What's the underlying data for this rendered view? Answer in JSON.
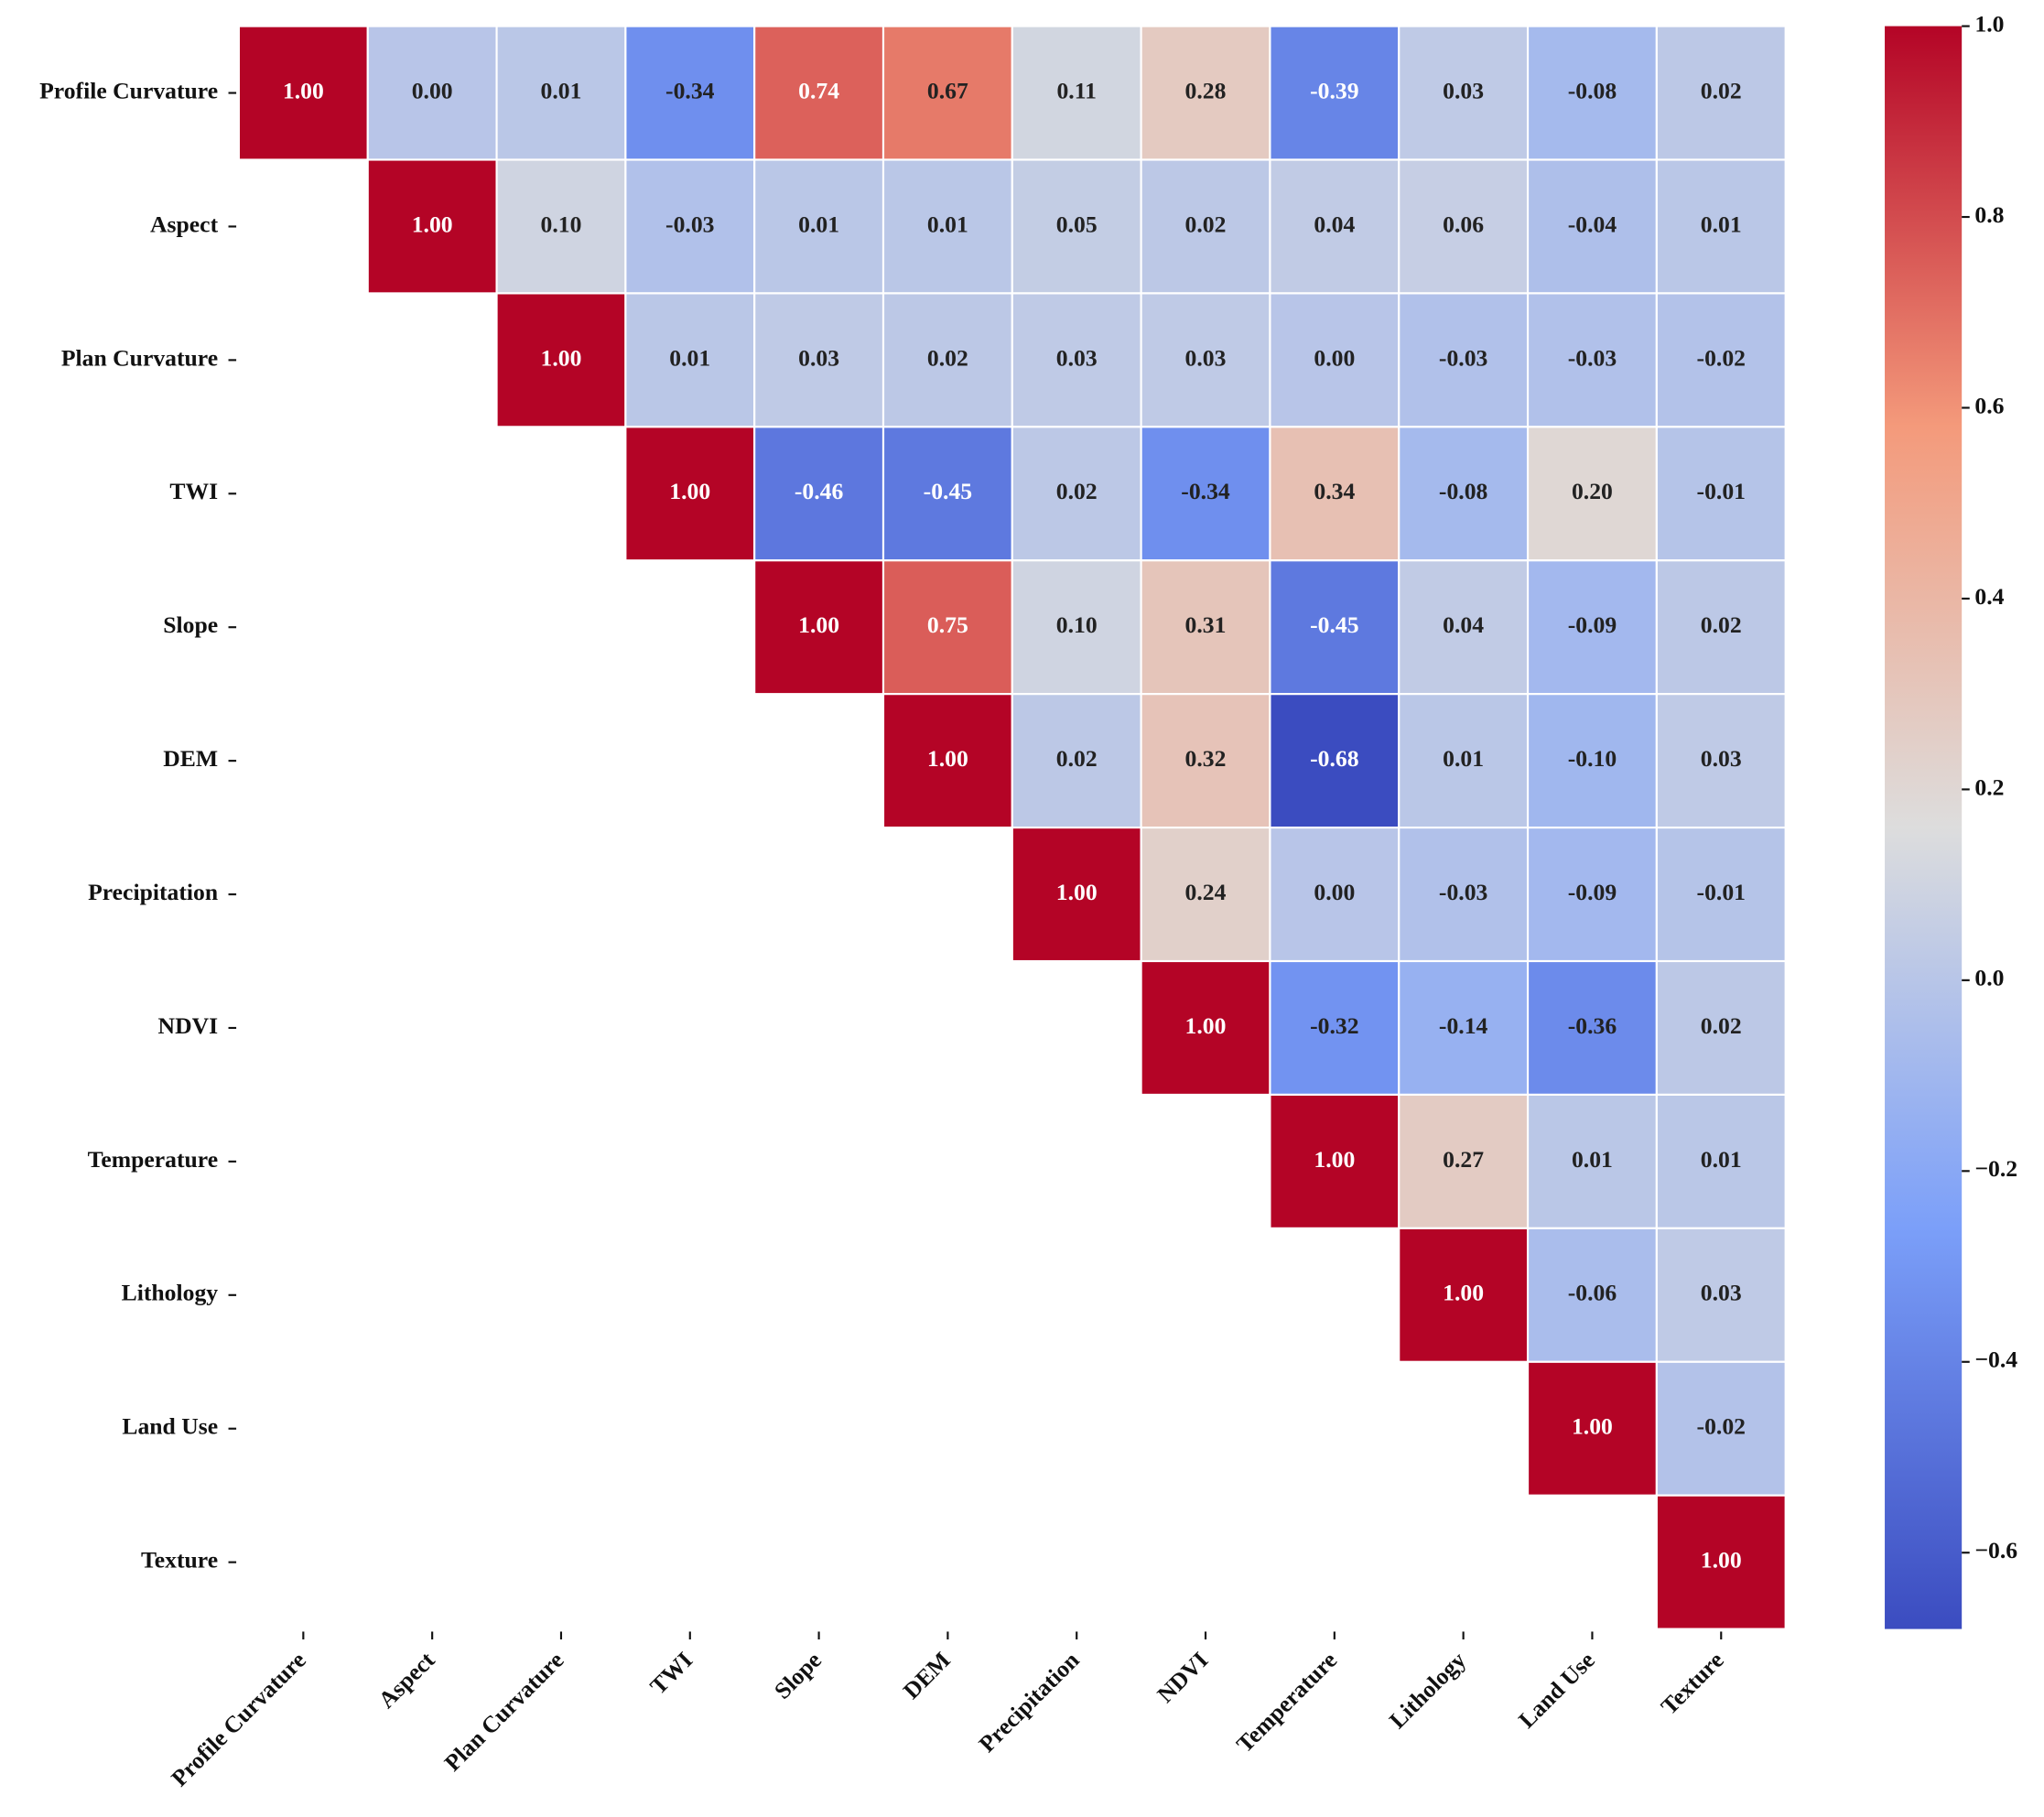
{
  "chart_data": {
    "type": "heatmap",
    "categories": [
      "Profile Curvature",
      "Aspect",
      "Plan Curvature",
      "TWI",
      "Slope",
      "DEM",
      "Precipitation",
      "NDVI",
      "Temperature",
      "Lithology",
      "Land Use",
      "Texture"
    ],
    "values": [
      [
        1,
        0,
        0.01,
        -0.34,
        0.74,
        0.67,
        0.11,
        0.28,
        -0.39,
        0.03,
        -0.08,
        0.02
      ],
      [
        null,
        1,
        0.1,
        -0.03,
        0.01,
        0.01,
        0.05,
        0.02,
        0.04,
        0.06,
        -0.04,
        0.01
      ],
      [
        null,
        null,
        1,
        0.01,
        0.03,
        0.02,
        0.03,
        0.03,
        0,
        -0.03,
        -0.03,
        -0.02
      ],
      [
        null,
        null,
        null,
        1,
        -0.46,
        -0.45,
        0.02,
        -0.34,
        0.34,
        -0.08,
        0.2,
        -0.01
      ],
      [
        null,
        null,
        null,
        null,
        1,
        0.75,
        0.1,
        0.31,
        -0.45,
        0.04,
        -0.09,
        0.02
      ],
      [
        null,
        null,
        null,
        null,
        null,
        1,
        0.02,
        0.32,
        -0.68,
        0.01,
        -0.1,
        0.03
      ],
      [
        null,
        null,
        null,
        null,
        null,
        null,
        1,
        0.24,
        0,
        -0.03,
        -0.09,
        -0.01
      ],
      [
        null,
        null,
        null,
        null,
        null,
        null,
        null,
        1,
        -0.32,
        -0.14,
        -0.36,
        0.02
      ],
      [
        null,
        null,
        null,
        null,
        null,
        null,
        null,
        null,
        1,
        0.27,
        0.01,
        0.01
      ],
      [
        null,
        null,
        null,
        null,
        null,
        null,
        null,
        null,
        null,
        1,
        -0.06,
        0.03
      ],
      [
        null,
        null,
        null,
        null,
        null,
        null,
        null,
        null,
        null,
        null,
        1,
        -0.02
      ],
      [
        null,
        null,
        null,
        null,
        null,
        null,
        null,
        null,
        null,
        null,
        null,
        1
      ]
    ],
    "value_labels": [
      [
        "1.00",
        "0.00",
        "0.01",
        "-0.34",
        "0.74",
        "0.67",
        "0.11",
        "0.28",
        "-0.39",
        "0.03",
        "-0.08",
        "0.02"
      ],
      [
        null,
        "1.00",
        "0.10",
        "-0.03",
        "0.01",
        "0.01",
        "0.05",
        "0.02",
        "0.04",
        "0.06",
        "-0.04",
        "0.01"
      ],
      [
        null,
        null,
        "1.00",
        "0.01",
        "0.03",
        "0.02",
        "0.03",
        "0.03",
        "0.00",
        "-0.03",
        "-0.03",
        "-0.02"
      ],
      [
        null,
        null,
        null,
        "1.00",
        "-0.46",
        "-0.45",
        "0.02",
        "-0.34",
        "0.34",
        "-0.08",
        "0.20",
        "-0.01"
      ],
      [
        null,
        null,
        null,
        null,
        "1.00",
        "0.75",
        "0.10",
        "0.31",
        "-0.45",
        "0.04",
        "-0.09",
        "0.02"
      ],
      [
        null,
        null,
        null,
        null,
        null,
        "1.00",
        "0.02",
        "0.32",
        "-0.68",
        "0.01",
        "-0.10",
        "0.03"
      ],
      [
        null,
        null,
        null,
        null,
        null,
        null,
        "1.00",
        "0.24",
        "0.00",
        "-0.03",
        "-0.09",
        "-0.01"
      ],
      [
        null,
        null,
        null,
        null,
        null,
        null,
        null,
        "1.00",
        "-0.32",
        "-0.14",
        "-0.36",
        "0.02"
      ],
      [
        null,
        null,
        null,
        null,
        null,
        null,
        null,
        null,
        "1.00",
        "0.27",
        "0.01",
        "0.01"
      ],
      [
        null,
        null,
        null,
        null,
        null,
        null,
        null,
        null,
        null,
        "1.00",
        "-0.06",
        "0.03"
      ],
      [
        null,
        null,
        null,
        null,
        null,
        null,
        null,
        null,
        null,
        null,
        "1.00",
        "-0.02"
      ],
      [
        null,
        null,
        null,
        null,
        null,
        null,
        null,
        null,
        null,
        null,
        null,
        "1.00"
      ]
    ],
    "colormap": [
      "#3b4cc0",
      "#7b9ff9",
      "#dddddd",
      "#f49a7b",
      "#b40426"
    ],
    "clim": [
      -0.68,
      1.0
    ],
    "cticks": [
      {
        "value": 1.0,
        "label": "1.0"
      },
      0.8,
      0.6,
      0.4,
      0.2,
      {
        "value": 0.0,
        "label": "0.0"
      },
      {
        "value": -0.2,
        "label": "−0.2"
      },
      {
        "value": -0.4,
        "label": "−0.4"
      },
      {
        "value": -0.6,
        "label": "−0.6"
      }
    ]
  }
}
